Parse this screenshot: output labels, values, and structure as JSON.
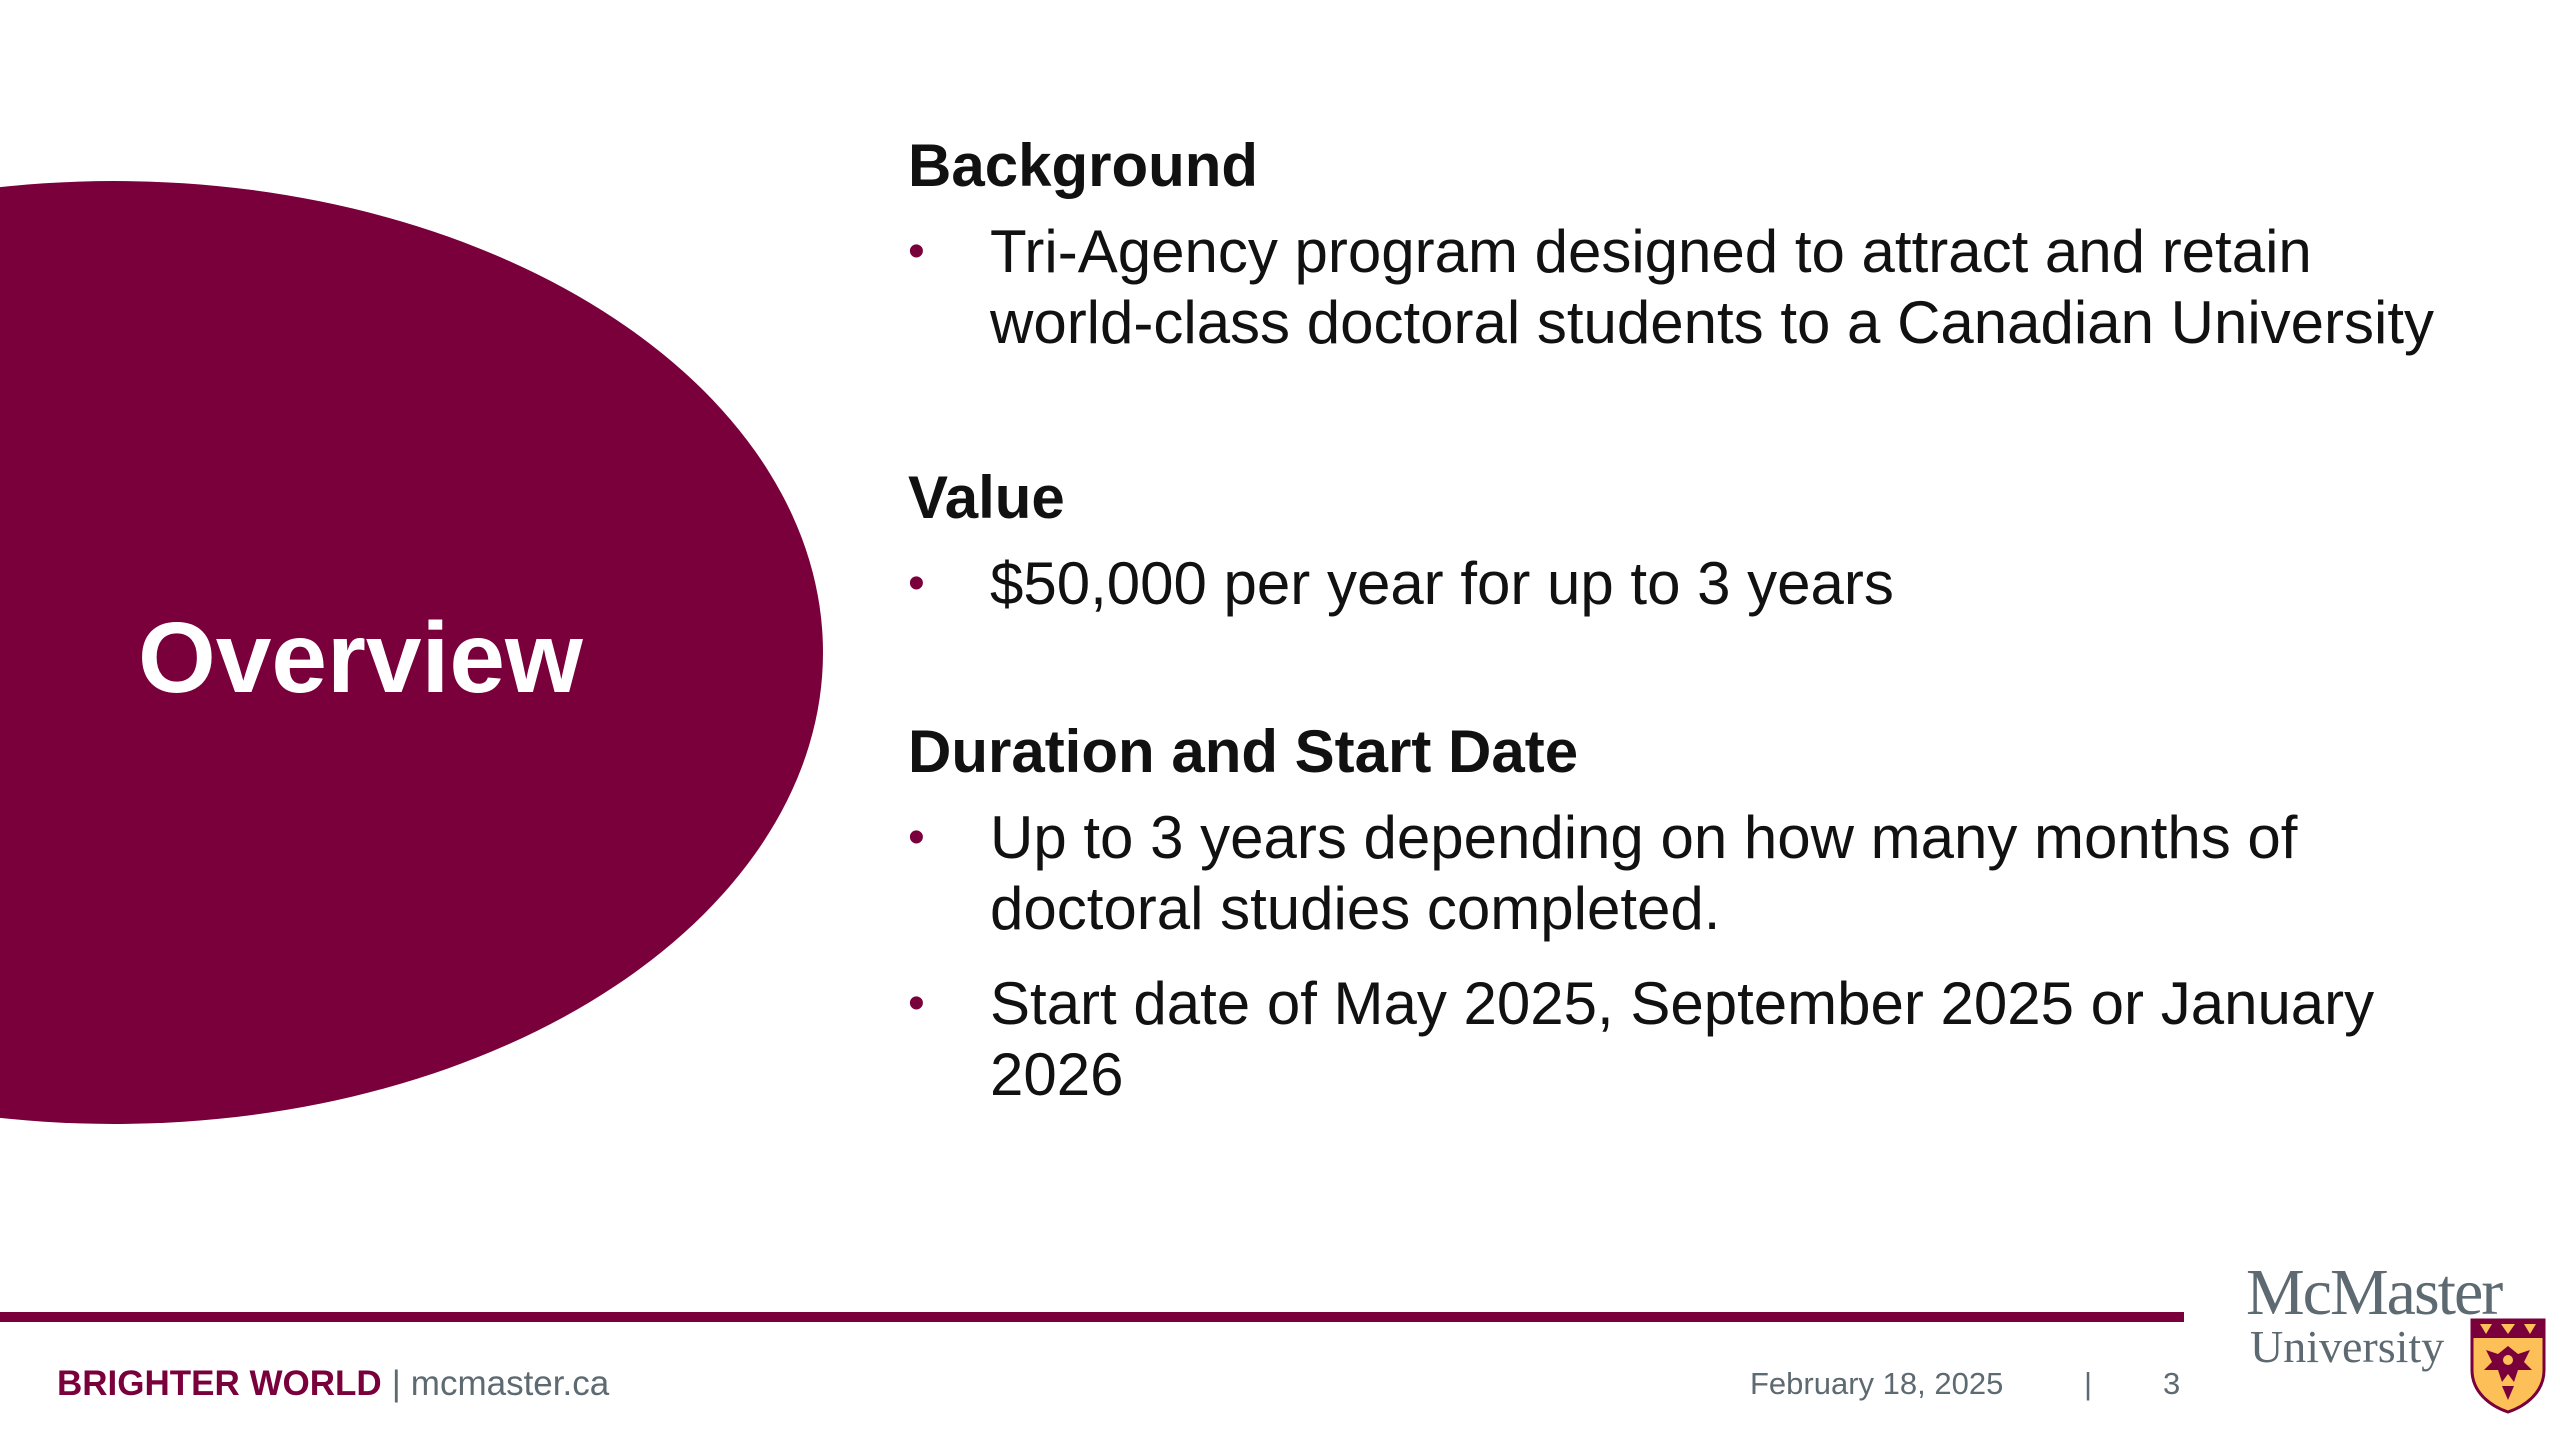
{
  "slide": {
    "title": "Overview",
    "sections": [
      {
        "heading": "Background",
        "bullets": [
          "Tri-Agency program designed to attract and retain world-class doctoral students to a Canadian University"
        ]
      },
      {
        "heading": "Value",
        "bullets": [
          "$50,000 per year for up to 3 years"
        ]
      },
      {
        "heading": "Duration and Start Date",
        "bullets": [
          "Up to 3 years depending on how many months of doctoral studies completed.",
          "Start date of May 2025, September 2025 or January 2026"
        ]
      }
    ]
  },
  "footer": {
    "brand": "BRIGHTER WORLD",
    "separator": "|",
    "site": "mcmaster.ca",
    "date": "February 18, 2025",
    "page_separator": "|",
    "page_number": "3"
  },
  "logo": {
    "name": "McMaster University",
    "line1": "McMaster",
    "line2": "University",
    "crest_icon": "mcmaster-crest-icon"
  },
  "colors": {
    "accent": "#7a003c",
    "gold": "#fdbf57",
    "text": "#111111",
    "footer_text": "#5e6a71",
    "background": "#ffffff"
  }
}
